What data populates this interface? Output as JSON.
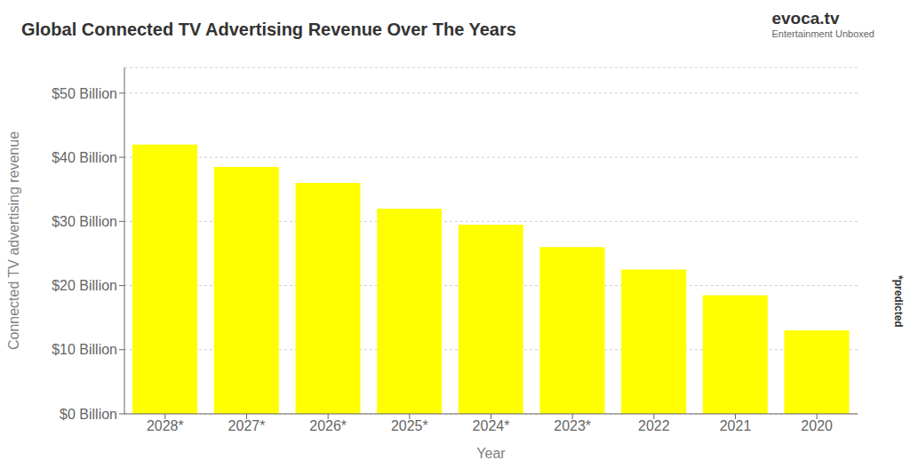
{
  "chart_data": {
    "type": "bar",
    "title": "Global Connected TV Advertising Revenue Over The Years",
    "xlabel": "Year",
    "ylabel": "Connected TV advertising revenue",
    "categories": [
      "2028*",
      "2027*",
      "2026*",
      "2025*",
      "2024*",
      "2023*",
      "2022",
      "2021",
      "2020"
    ],
    "values": [
      42,
      38.5,
      36,
      32,
      29.5,
      26,
      22.5,
      18.5,
      13
    ],
    "color": "#FFFF00",
    "ylim": [
      0,
      54
    ],
    "yticks": [
      {
        "value": 0,
        "label": "$0 Billion"
      },
      {
        "value": 10,
        "label": "$10 Billion"
      },
      {
        "value": 20,
        "label": "$20 Billion"
      },
      {
        "value": 30,
        "label": "$30 Billion"
      },
      {
        "value": 40,
        "label": "$40 Billion"
      },
      {
        "value": 50,
        "label": "$50 Billion"
      }
    ],
    "grid": true,
    "annotations": [
      "*predicted",
      "evoca.tv",
      "Entertainment Unboxed"
    ]
  }
}
